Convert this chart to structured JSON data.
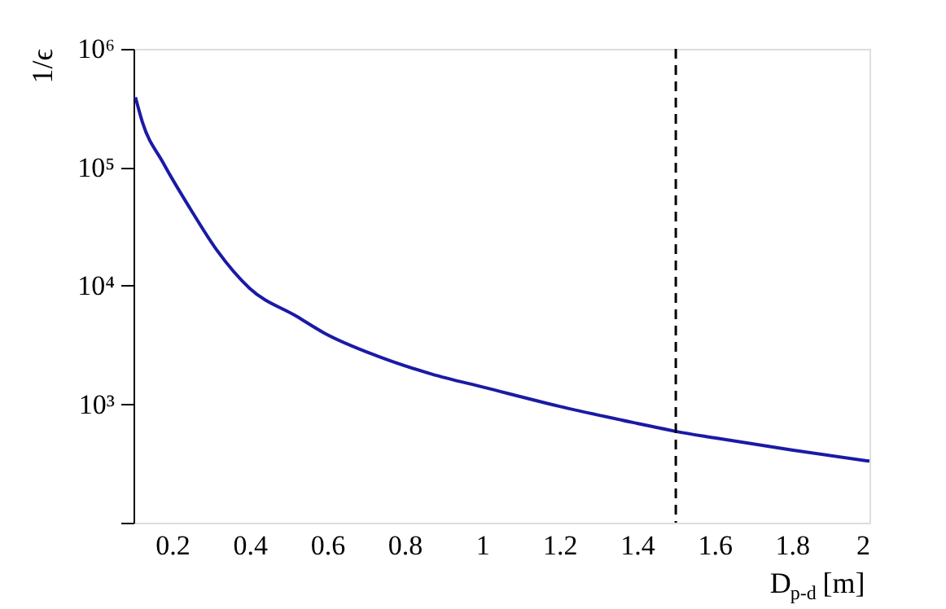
{
  "chart_data": {
    "type": "line",
    "xlabel": "D$_{p-d}$ [m]",
    "ylabel": "1/ϵ",
    "x": [
      0.105,
      0.123,
      0.176,
      0.246,
      0.315,
      0.4,
      0.522,
      0.592,
      0.73,
      0.869,
      1.008,
      1.2,
      1.4,
      1.5,
      1.6,
      1.8,
      2.0
    ],
    "series": [
      {
        "color": "#1a1aa6",
        "values": [
          390000,
          240000,
          110000,
          45000,
          20000,
          9500,
          5500,
          4000,
          2550,
          1800,
          1380,
          960,
          690,
          590,
          520,
          410,
          331
        ]
      }
    ],
    "log": true,
    "xlim": [
      0.1,
      2
    ],
    "ylim": [
      100,
      1000000
    ],
    "xticks": [
      0.2,
      0.4,
      0.6,
      0.8,
      1,
      1.2,
      1.4,
      1.6,
      1.8,
      2
    ],
    "yticks": [
      {
        "value": 100,
        "label": null
      },
      {
        "value": 1000,
        "label": "10³"
      },
      {
        "value": 10000,
        "label": "10⁴"
      },
      {
        "value": 100000,
        "label": "10⁵"
      },
      {
        "value": 1000000,
        "label": "10⁶"
      }
    ],
    "ref_lines": [
      {
        "axis": "x",
        "value": 1.5,
        "color": "#000000",
        "line_style": "dashed"
      }
    ],
    "grid": false,
    "legend": false,
    "marker": "none",
    "line_style": "solid"
  }
}
